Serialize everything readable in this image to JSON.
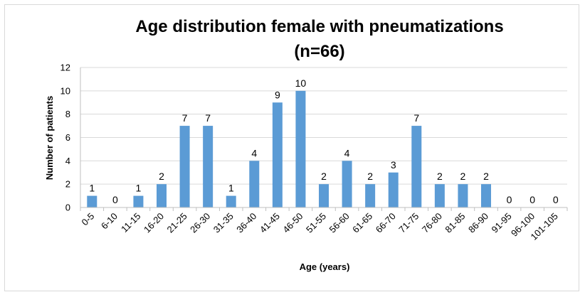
{
  "chart_data": {
    "type": "bar",
    "title_line1": "Age distribution female with pneumatizations",
    "title_line2": "(n=66)",
    "xlabel": "Age (years)",
    "ylabel": "Number of patients",
    "categories": [
      "0-5",
      "6-10",
      "11-15",
      "16-20",
      "21-25",
      "26-30",
      "31-35",
      "36-40",
      "41-45",
      "46-50",
      "51-55",
      "56-60",
      "61-65",
      "66-70",
      "71-75",
      "76-80",
      "81-85",
      "86-90",
      "91-95",
      "96-100",
      "101-105"
    ],
    "values": [
      1,
      0,
      1,
      2,
      7,
      7,
      1,
      4,
      9,
      10,
      2,
      4,
      2,
      3,
      7,
      2,
      2,
      2,
      0,
      0,
      0
    ],
    "ylim": [
      0,
      12
    ],
    "yticks": [
      0,
      2,
      4,
      6,
      8,
      10,
      12
    ],
    "grid": true,
    "legend": "none",
    "bar_color": "#5b9bd5",
    "grid_color": "#d9d9d9",
    "axis_color": "#bfbfbf"
  }
}
